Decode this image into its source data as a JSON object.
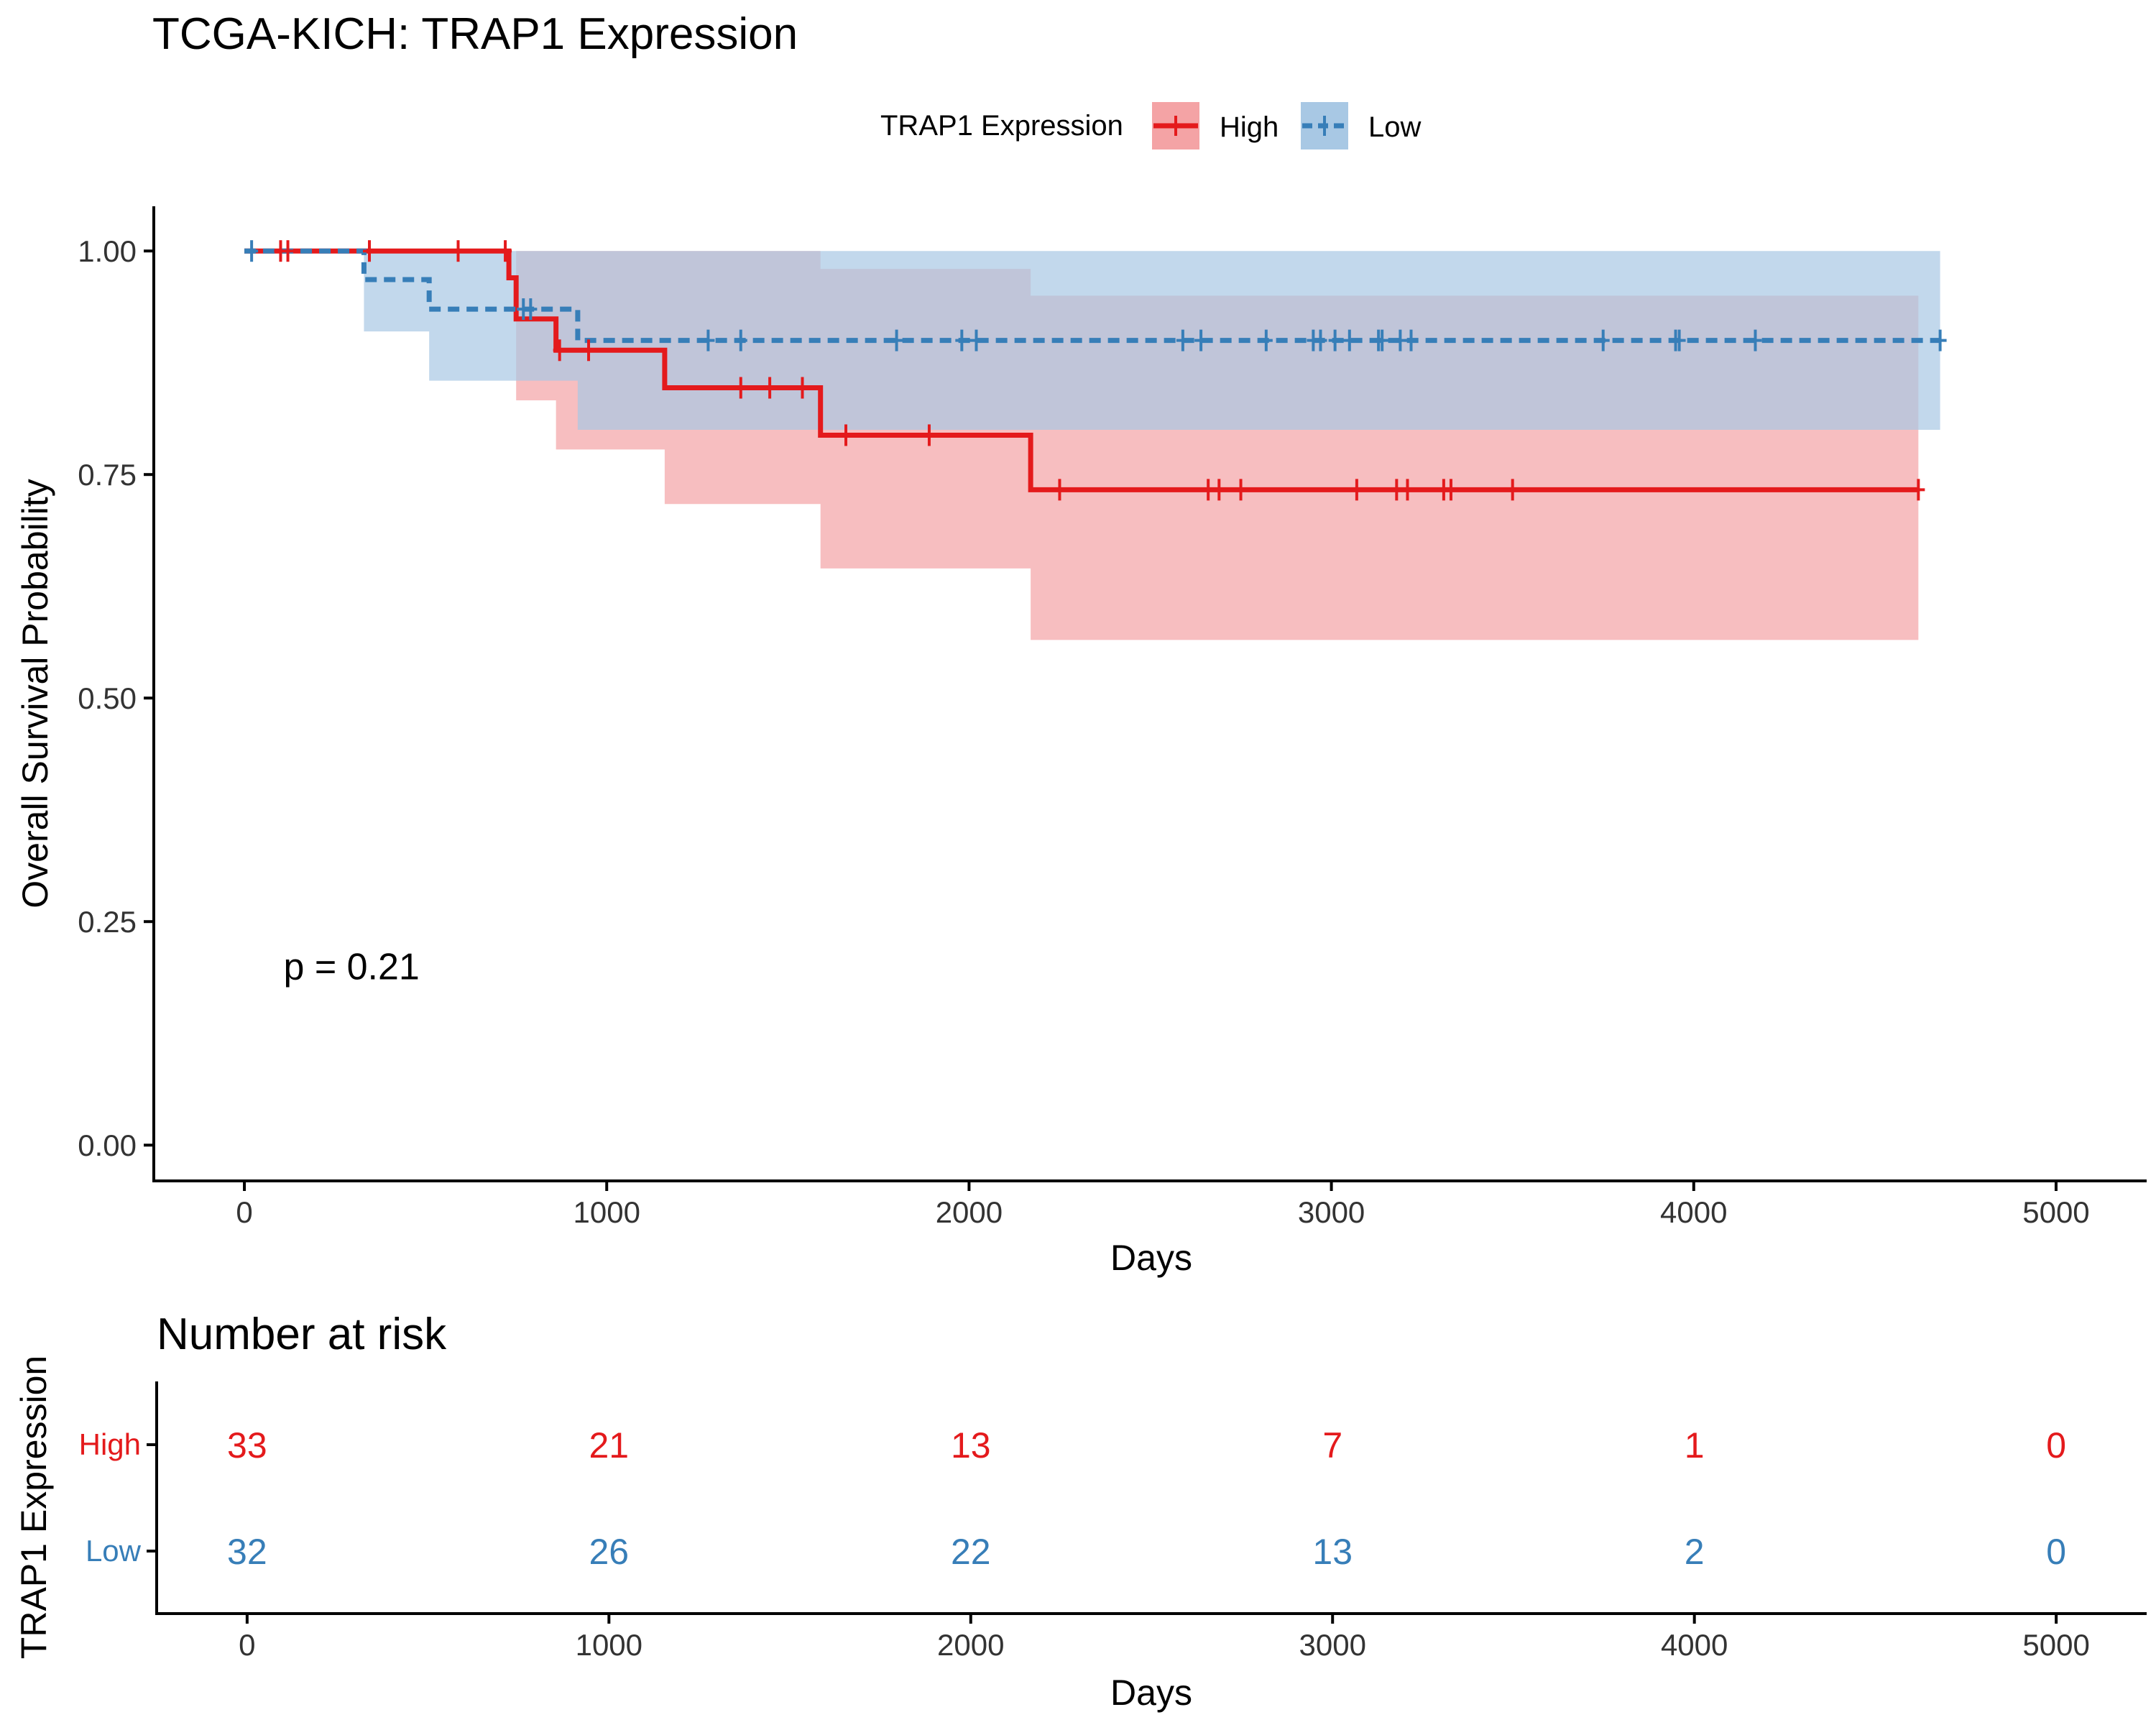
{
  "chart_data": [
    {
      "type": "line",
      "subtype": "kaplan-meier",
      "title": "TCGA-KICH: TRAP1 Expression",
      "xlabel": "Days",
      "ylabel": "Overall Survival Probability",
      "xlim": [
        -250,
        5250
      ],
      "ylim": [
        -0.04,
        1.05
      ],
      "xticks": [
        0,
        1000,
        2000,
        3000,
        4000,
        5000
      ],
      "xtick_labels": [
        "0",
        "1000",
        "2000",
        "3000",
        "4000",
        "5000"
      ],
      "yticks": [
        0,
        0.25,
        0.5,
        0.75,
        1.0
      ],
      "ytick_labels": [
        "0.00",
        "0.25",
        "0.50",
        "0.75",
        "1.00"
      ],
      "grid": false,
      "legend": {
        "title": "TRAP1 Expression",
        "position": "top",
        "entries": [
          "High",
          "Low"
        ]
      },
      "annotation": "p = 0.21",
      "annotation_at": [
        100,
        0.2
      ],
      "series": [
        {
          "name": "High",
          "color": "#E41A1C",
          "fill": "#F4A3A5",
          "dash": "solid",
          "steps": [
            [
              0,
              1.0
            ],
            [
              720,
              1.0
            ],
            [
              730,
              0.97
            ],
            [
              750,
              0.924
            ],
            [
              860,
              0.889
            ],
            [
              1160,
              0.847
            ],
            [
              1590,
              0.794
            ],
            [
              2170,
              0.733
            ],
            [
              4620,
              0.733
            ]
          ],
          "ci": [
            [
              0,
              1.0,
              1.0
            ],
            [
              720,
              1.0,
              1.0
            ],
            [
              750,
              1.0,
              0.833
            ],
            [
              860,
              1.0,
              0.778
            ],
            [
              1160,
              1.0,
              0.717
            ],
            [
              1590,
              0.98,
              0.645
            ],
            [
              2170,
              0.95,
              0.565
            ],
            [
              4620,
              0.95,
              0.565
            ]
          ],
          "censor_x": [
            100,
            120,
            345,
            590,
            720,
            870,
            950,
            1370,
            1450,
            1540,
            1660,
            1890,
            2250,
            2660,
            2690,
            2750,
            3070,
            3180,
            3210,
            3310,
            3330,
            3500,
            4620
          ]
        },
        {
          "name": "Low",
          "color": "#377EB8",
          "fill": "#A8C8E4",
          "dash": "dashed",
          "steps": [
            [
              0,
              1.0
            ],
            [
              330,
              0.968
            ],
            [
              510,
              0.935
            ],
            [
              920,
              0.9
            ],
            [
              4680,
              0.9
            ]
          ],
          "ci": [
            [
              0,
              1.0,
              1.0
            ],
            [
              330,
              1.0,
              0.91
            ],
            [
              510,
              1.0,
              0.855
            ],
            [
              920,
              1.0,
              0.8
            ],
            [
              4680,
              1.0,
              0.8
            ]
          ],
          "censor_x": [
            20,
            770,
            790,
            1280,
            1370,
            1800,
            1980,
            2020,
            2590,
            2640,
            2820,
            2950,
            2970,
            3010,
            3050,
            3130,
            3140,
            3190,
            3220,
            3750,
            3950,
            3960,
            4170,
            4680
          ]
        }
      ]
    },
    {
      "type": "table",
      "title": "Number at risk",
      "xlabel": "Days",
      "ylabel": "TRAP1 Expression",
      "xticks": [
        0,
        1000,
        2000,
        3000,
        4000,
        5000
      ],
      "xtick_labels": [
        "0",
        "1000",
        "2000",
        "3000",
        "4000",
        "5000"
      ],
      "rows": [
        {
          "name": "High",
          "color": "#E41A1C",
          "values": [
            33,
            21,
            13,
            7,
            1,
            0
          ]
        },
        {
          "name": "Low",
          "color": "#377EB8",
          "values": [
            32,
            26,
            22,
            13,
            2,
            0
          ]
        }
      ]
    }
  ]
}
